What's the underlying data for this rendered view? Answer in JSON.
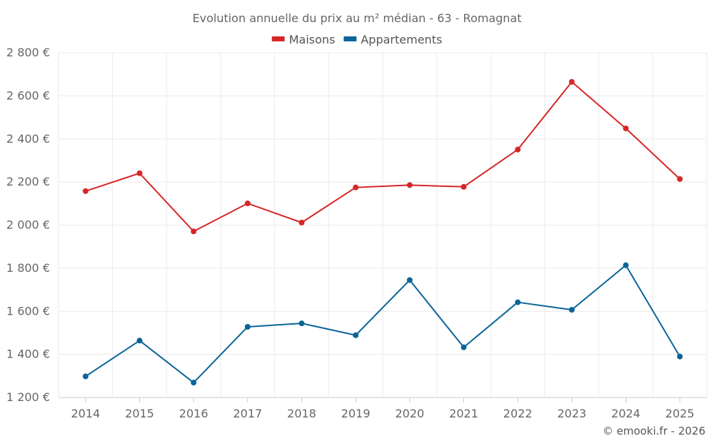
{
  "chart_data": {
    "type": "line",
    "title": "Evolution annuelle du prix au m² médian - 63 - Romagnat",
    "categories": [
      "2014",
      "2015",
      "2016",
      "2017",
      "2018",
      "2019",
      "2020",
      "2021",
      "2022",
      "2023",
      "2024",
      "2025"
    ],
    "series": [
      {
        "name": "Maisons",
        "color": "#d62728",
        "values": [
          2158,
          2241,
          1971,
          2101,
          2012,
          2175,
          2186,
          2178,
          2351,
          2665,
          2449,
          2214
        ]
      },
      {
        "name": "Appartements",
        "color": "#0a6599",
        "values": [
          1298,
          1464,
          1269,
          1528,
          1544,
          1489,
          1745,
          1433,
          1642,
          1607,
          1814,
          1390
        ]
      }
    ],
    "ylim": [
      1200,
      2800
    ],
    "yticks": [
      1200,
      1400,
      1600,
      1800,
      2000,
      2200,
      2400,
      2600,
      2800
    ],
    "ytick_labels": [
      "1 200 €",
      "1 400 €",
      "1 600 €",
      "1 800 €",
      "2 000 €",
      "2 200 €",
      "2 400 €",
      "2 600 €",
      "2 800 €"
    ],
    "xlabel": "",
    "ylabel": "",
    "grid": true,
    "legend_position": "top-center"
  },
  "credit": "© emooki.fr - 2026"
}
